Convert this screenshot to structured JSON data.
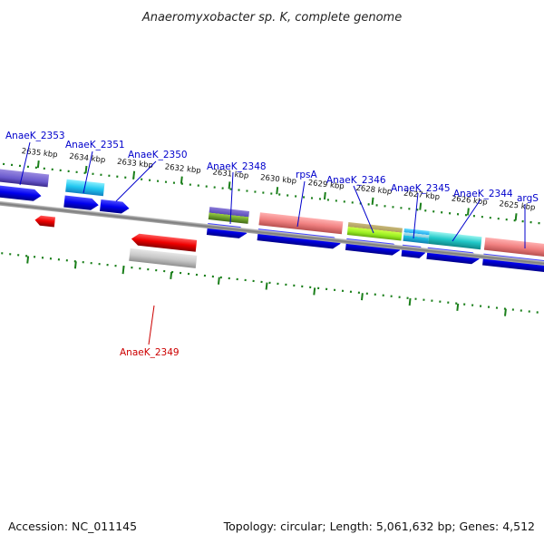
{
  "title": "Anaeromyxobacter sp. K, complete genome",
  "footer": {
    "accession": "Accession: NC_011145",
    "topology": "Topology: circular; Length: 5,061,632 bp; Genes: 4,512"
  },
  "colors": {
    "label_blue": "#0000cc",
    "label_red": "#cc0000",
    "tick_green": "#008000",
    "backbone_gray": "#8a8a8a",
    "cds_blue": "#0000ee",
    "cds_red": "#ee0000"
  },
  "scale_labels": [
    "2635 kbp",
    "2634 kbp",
    "2633 kbp",
    "2632 kbp",
    "2631 kbp",
    "2630 kbp",
    "2629 kbp",
    "2628 kbp",
    "2627 kbp",
    "2626 kbp",
    "2625 kbp"
  ],
  "gene_labels_top": [
    "AnaeK_2353",
    "AnaeK_2351",
    "AnaeK_2350",
    "AnaeK_2348",
    "rpsA",
    "AnaeK_2346",
    "AnaeK_2345",
    "AnaeK_2344",
    "argS"
  ],
  "gene_labels_bottom": [
    "AnaeK_2349"
  ]
}
